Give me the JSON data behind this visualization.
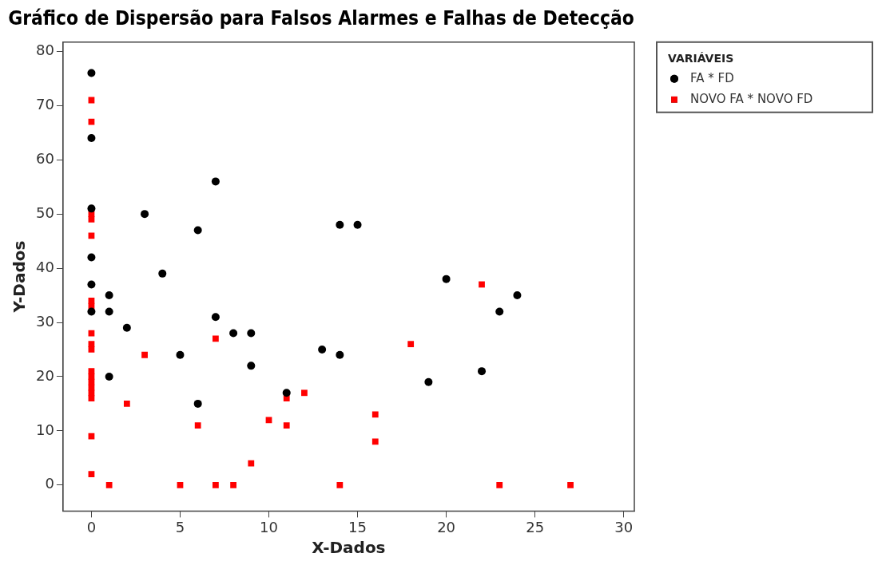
{
  "chart_data": {
    "type": "scatter",
    "title": "Gráfico de Dispersão para Falsos Alarmes e Falhas de Detecção",
    "xlabel": "X-Dados",
    "ylabel": "Y-Dados",
    "legend_title": "VARIÁVEIS",
    "legend": "top right",
    "grid": false,
    "xlim": [
      -1.6,
      30.6
    ],
    "xticks": [
      0,
      5,
      10,
      15,
      20,
      25,
      30
    ],
    "ylim": [
      -4.8,
      81.7
    ],
    "yticks": [
      0,
      10,
      20,
      30,
      40,
      50,
      60,
      70,
      80
    ],
    "series": [
      {
        "name": "FA * FD",
        "color": "#000000",
        "marker": "circle",
        "x": [
          0,
          0,
          0,
          0,
          0,
          0,
          1,
          1,
          1,
          2,
          3,
          4,
          5,
          6,
          6,
          7,
          7,
          8,
          9,
          9,
          11,
          13,
          14,
          14,
          15,
          19,
          20,
          22,
          23,
          24
        ],
        "values": [
          76,
          64,
          51,
          42,
          37,
          32,
          35,
          32,
          20,
          29,
          50,
          39,
          24,
          47,
          15,
          56,
          31,
          28,
          28,
          22,
          17,
          25,
          48,
          24,
          48,
          19,
          38,
          21,
          32,
          35
        ]
      },
      {
        "name": "NOVO FA * NOVO FD",
        "color": "#ff0000",
        "marker": "square",
        "x": [
          0,
          0,
          0,
          0,
          0,
          0,
          0,
          0,
          0,
          0,
          0,
          0,
          0,
          0,
          0,
          0,
          0,
          0,
          1,
          2,
          3,
          5,
          6,
          7,
          7,
          8,
          9,
          10,
          11,
          11,
          12,
          14,
          16,
          16,
          18,
          22,
          23,
          27
        ],
        "values": [
          71,
          67,
          50,
          49,
          46,
          34,
          33,
          28,
          26,
          25,
          21,
          20,
          19,
          18,
          17,
          16,
          9,
          2,
          0,
          15,
          24,
          0,
          11,
          27,
          0,
          0,
          4,
          12,
          16,
          11,
          17,
          0,
          13,
          8,
          26,
          37,
          0,
          0
        ]
      }
    ]
  }
}
